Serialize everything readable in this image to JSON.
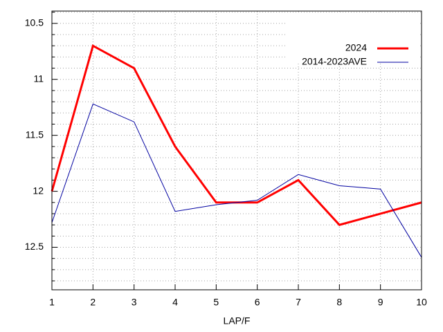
{
  "chart_data": {
    "type": "line",
    "xlabel": "LAP/F",
    "x": [
      1,
      2,
      3,
      4,
      5,
      6,
      7,
      8,
      9,
      10
    ],
    "series": [
      {
        "name": "2024",
        "color": "#ff0000",
        "width": 3,
        "values": [
          12.0,
          10.7,
          10.9,
          11.6,
          12.1,
          12.1,
          11.9,
          12.3,
          12.2,
          12.1
        ]
      },
      {
        "name": "2014-2023AVE",
        "color": "#0000a0",
        "width": 1,
        "values": [
          12.28,
          11.22,
          11.38,
          12.18,
          12.12,
          12.08,
          11.85,
          11.95,
          11.98,
          12.59
        ]
      }
    ],
    "xlim": [
      1,
      10
    ],
    "xticks": [
      1,
      2,
      3,
      4,
      5,
      6,
      7,
      8,
      9,
      10
    ],
    "ylim": [
      12.88,
      10.39
    ],
    "yticks": [
      10.5,
      11,
      11.5,
      12,
      12.5
    ],
    "yminorticks": [
      10.4,
      10.6,
      10.7,
      10.8,
      10.9,
      11.1,
      11.2,
      11.3,
      11.4,
      11.6,
      11.7,
      11.8,
      11.9,
      12.1,
      12.2,
      12.3,
      12.4,
      12.6,
      12.7,
      12.8
    ],
    "grid": true,
    "legend": "top-right"
  }
}
